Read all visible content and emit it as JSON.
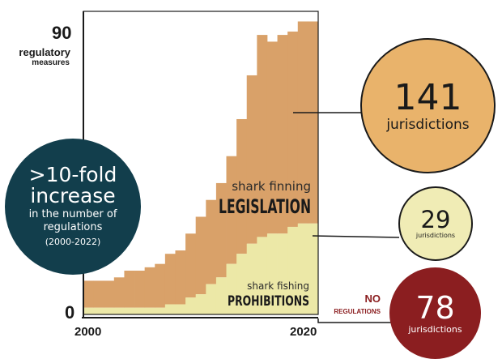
{
  "chart_data": {
    "type": "area",
    "x": [
      2000,
      2001,
      2002,
      2003,
      2004,
      2005,
      2006,
      2007,
      2008,
      2009,
      2010,
      2011,
      2012,
      2013,
      2014,
      2015,
      2016,
      2017,
      2018,
      2019,
      2020,
      2021,
      2022
    ],
    "series": [
      {
        "name": "shark fishing PROHIBITIONS",
        "stack": "bottom",
        "values": [
          2,
          2,
          2,
          2,
          2,
          2,
          2,
          2,
          3,
          3,
          5,
          6,
          9,
          11,
          15,
          18,
          21,
          23,
          24,
          24,
          26,
          27,
          27
        ]
      },
      {
        "name": "shark finning LEGISLATION",
        "stack": "top",
        "values": [
          8,
          8,
          8,
          9,
          11,
          11,
          12,
          13,
          15,
          16,
          19,
          23,
          25,
          28,
          32,
          40,
          50,
          60,
          57,
          59,
          58,
          60,
          60
        ]
      }
    ],
    "ylim": [
      0,
      90
    ],
    "xlim": [
      2000,
      2022
    ],
    "ytick_labels": [
      "0",
      "90"
    ],
    "xtick_labels": [
      "2000",
      "2020"
    ],
    "ylabel_line1": "regulatory",
    "ylabel_line2": "measures",
    "area_labels": {
      "legislation_small": "shark finning",
      "legislation_big": "LEGISLATION",
      "prohibition_small": "shark fishing",
      "prohibition_big": "PROHIBITIONS"
    },
    "colors": {
      "legislation": "#d9a169",
      "prohibitions": "#ece8a7"
    }
  },
  "callouts": {
    "increase": {
      "line1": ">10-fold",
      "line2": "increase",
      "line3": "in the number of",
      "line4": "regulations",
      "line5": "(2000-2022)",
      "color": "#123e4c"
    },
    "legislation": {
      "number": "141",
      "label": "jurisdictions",
      "color": "#e9b36b"
    },
    "prohibitions": {
      "number": "29",
      "label": "jurisdictions",
      "color": "#f0ecb5"
    },
    "no_regulations": {
      "tag_line1": "NO",
      "tag_line2": "REGULATIONS",
      "number": "78",
      "label": "jurisdictions",
      "color": "#8b1e20"
    }
  }
}
